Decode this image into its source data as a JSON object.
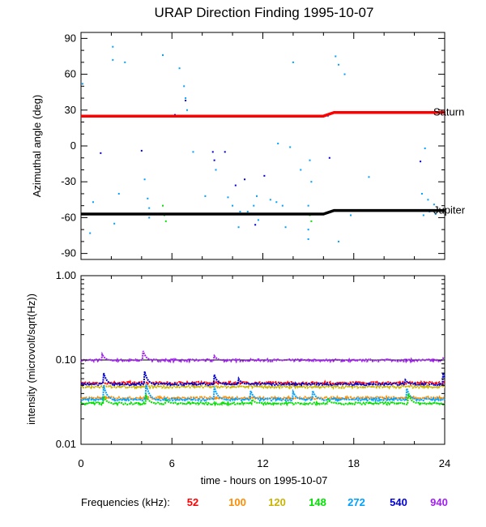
{
  "title": "URAP Direction Finding  1995-10-07",
  "xlabel": "time - hours on 1995-10-07",
  "legend": {
    "label": "Frequencies (kHz):",
    "items": [
      {
        "name": "52",
        "color": "#ff0000"
      },
      {
        "name": "100",
        "color": "#ff8c00"
      },
      {
        "name": "120",
        "color": "#c8b400"
      },
      {
        "name": "148",
        "color": "#00e000"
      },
      {
        "name": "272",
        "color": "#00a0ff"
      },
      {
        "name": "540",
        "color": "#0000d0"
      },
      {
        "name": "940",
        "color": "#a020f0"
      }
    ]
  },
  "chart_data": [
    {
      "type": "scatter",
      "ylabel": "Azimuthal angle (deg)",
      "xlim": [
        0,
        24
      ],
      "ylim": [
        -95,
        95
      ],
      "xticks": [
        0,
        6,
        12,
        18,
        24
      ],
      "yticks": [
        90,
        60,
        30,
        0,
        -30,
        -60,
        -90
      ],
      "series": [
        {
          "name": "Saturn",
          "color": "#ff0000",
          "x": [
            0,
            16.0,
            16.7,
            24
          ],
          "y": [
            25,
            25,
            28,
            28
          ]
        },
        {
          "name": "Jupiter",
          "color": "#000000",
          "x": [
            0,
            16.0,
            16.7,
            24
          ],
          "y": [
            -57,
            -57,
            -54,
            -54
          ]
        }
      ],
      "scatter_points": [
        {
          "x": 0.1,
          "y": 52,
          "c": "#00a0ff"
        },
        {
          "x": 0.6,
          "y": -73,
          "c": "#00a0ff"
        },
        {
          "x": 0.8,
          "y": -47,
          "c": "#00a0ff"
        },
        {
          "x": 1.3,
          "y": -6,
          "c": "#0000d0"
        },
        {
          "x": 2.1,
          "y": 83,
          "c": "#00a0ff"
        },
        {
          "x": 2.1,
          "y": 72,
          "c": "#00a0ff"
        },
        {
          "x": 2.2,
          "y": -65,
          "c": "#00a0ff"
        },
        {
          "x": 2.5,
          "y": -40,
          "c": "#00a0ff"
        },
        {
          "x": 2.9,
          "y": 70,
          "c": "#00a0ff"
        },
        {
          "x": 4.0,
          "y": -4,
          "c": "#0000d0"
        },
        {
          "x": 4.2,
          "y": -28,
          "c": "#00a0ff"
        },
        {
          "x": 4.4,
          "y": -44,
          "c": "#00a0ff"
        },
        {
          "x": 4.5,
          "y": -52,
          "c": "#00a0ff"
        },
        {
          "x": 4.5,
          "y": -60,
          "c": "#00a0ff"
        },
        {
          "x": 5.4,
          "y": -50,
          "c": "#00e000"
        },
        {
          "x": 5.5,
          "y": -58,
          "c": "#00e000"
        },
        {
          "x": 5.6,
          "y": -63,
          "c": "#00e000"
        },
        {
          "x": 5.4,
          "y": 76,
          "c": "#00a0ff"
        },
        {
          "x": 6.2,
          "y": 26,
          "c": "#0000d0"
        },
        {
          "x": 6.5,
          "y": 65,
          "c": "#00a0ff"
        },
        {
          "x": 6.8,
          "y": 50,
          "c": "#00a0ff"
        },
        {
          "x": 6.9,
          "y": 40,
          "c": "#00a0ff"
        },
        {
          "x": 6.9,
          "y": 38,
          "c": "#0000d0"
        },
        {
          "x": 7.0,
          "y": 30,
          "c": "#00a0ff"
        },
        {
          "x": 7.4,
          "y": -5,
          "c": "#00a0ff"
        },
        {
          "x": 8.2,
          "y": -42,
          "c": "#00a0ff"
        },
        {
          "x": 8.7,
          "y": -5,
          "c": "#0000d0"
        },
        {
          "x": 8.8,
          "y": -12,
          "c": "#0000d0"
        },
        {
          "x": 8.9,
          "y": -20,
          "c": "#00a0ff"
        },
        {
          "x": 9.5,
          "y": -5,
          "c": "#0000d0"
        },
        {
          "x": 9.7,
          "y": -43,
          "c": "#00a0ff"
        },
        {
          "x": 10.2,
          "y": -33,
          "c": "#0000d0"
        },
        {
          "x": 10.4,
          "y": -68,
          "c": "#00a0ff"
        },
        {
          "x": 10.5,
          "y": -55,
          "c": "#00a0ff"
        },
        {
          "x": 10.8,
          "y": -28,
          "c": "#0000d0"
        },
        {
          "x": 11.0,
          "y": -55,
          "c": "#00a0ff"
        },
        {
          "x": 11.4,
          "y": -50,
          "c": "#00a0ff"
        },
        {
          "x": 11.6,
          "y": -42,
          "c": "#00a0ff"
        },
        {
          "x": 11.7,
          "y": -62,
          "c": "#00a0ff"
        },
        {
          "x": 12.1,
          "y": -25,
          "c": "#0000d0"
        },
        {
          "x": 12.5,
          "y": -45,
          "c": "#00a0ff"
        },
        {
          "x": 12.9,
          "y": -47,
          "c": "#00a0ff"
        },
        {
          "x": 13.0,
          "y": 2,
          "c": "#00a0ff"
        },
        {
          "x": 13.3,
          "y": -50,
          "c": "#00a0ff"
        },
        {
          "x": 13.4,
          "y": -57,
          "c": "#00a0ff"
        },
        {
          "x": 13.5,
          "y": -68,
          "c": "#00a0ff"
        },
        {
          "x": 13.8,
          "y": -1,
          "c": "#00a0ff"
        },
        {
          "x": 14.0,
          "y": 70,
          "c": "#00a0ff"
        },
        {
          "x": 14.5,
          "y": -20,
          "c": "#00a0ff"
        },
        {
          "x": 15.0,
          "y": -50,
          "c": "#00a0ff"
        },
        {
          "x": 15.1,
          "y": -58,
          "c": "#00e000"
        },
        {
          "x": 15.2,
          "y": -63,
          "c": "#00e000"
        },
        {
          "x": 15.0,
          "y": -70,
          "c": "#00a0ff"
        },
        {
          "x": 15.0,
          "y": -78,
          "c": "#00a0ff"
        },
        {
          "x": 15.1,
          "y": -12,
          "c": "#00a0ff"
        },
        {
          "x": 15.2,
          "y": -30,
          "c": "#00a0ff"
        },
        {
          "x": 16.3,
          "y": 25,
          "c": "#00a0ff"
        },
        {
          "x": 16.4,
          "y": -10,
          "c": "#0000d0"
        },
        {
          "x": 16.8,
          "y": 75,
          "c": "#00a0ff"
        },
        {
          "x": 17.0,
          "y": 68,
          "c": "#00a0ff"
        },
        {
          "x": 17.0,
          "y": -80,
          "c": "#00a0ff"
        },
        {
          "x": 17.4,
          "y": 60,
          "c": "#00a0ff"
        },
        {
          "x": 17.8,
          "y": -58,
          "c": "#00a0ff"
        },
        {
          "x": 19.0,
          "y": -26,
          "c": "#00a0ff"
        },
        {
          "x": 22.4,
          "y": -13,
          "c": "#0000d0"
        },
        {
          "x": 22.5,
          "y": -40,
          "c": "#00a0ff"
        },
        {
          "x": 22.6,
          "y": -58,
          "c": "#00a0ff"
        },
        {
          "x": 22.7,
          "y": -2,
          "c": "#00a0ff"
        },
        {
          "x": 22.9,
          "y": -45,
          "c": "#00a0ff"
        },
        {
          "x": 23.0,
          "y": -55,
          "c": "#00a0ff"
        },
        {
          "x": 23.3,
          "y": -49,
          "c": "#00a0ff"
        },
        {
          "x": 23.4,
          "y": -57,
          "c": "#00a0ff"
        },
        {
          "x": 11.5,
          "y": -66,
          "c": "#0000d0"
        },
        {
          "x": 10.0,
          "y": -50,
          "c": "#00a0ff"
        }
      ],
      "line_labels": [
        {
          "name": "Saturn",
          "y": 28
        },
        {
          "name": "Jupiter",
          "y": -54
        }
      ]
    },
    {
      "type": "line",
      "ylabel": "intensity (microvolt/sqrt(Hz))",
      "yscale": "log",
      "xlim": [
        0,
        24
      ],
      "ylim": [
        0.01,
        1.0
      ],
      "xticks": [
        0,
        6,
        12,
        18,
        24
      ],
      "yticks": [
        1.0,
        0.1,
        0.01
      ],
      "ytick_labels": [
        "1.00",
        "0.10",
        "0.01"
      ],
      "series": [
        {
          "name": "940",
          "color": "#a020f0",
          "level": 0.099,
          "spikes": [
            [
              1.4,
              0.117
            ],
            [
              4.1,
              0.128
            ],
            [
              8.8,
              0.112
            ],
            [
              23.9,
              0.105
            ]
          ]
        },
        {
          "name": "52",
          "color": "#ff0000",
          "level": 0.0535,
          "spikes": []
        },
        {
          "name": "540",
          "color": "#0000d0",
          "level": 0.0515,
          "spikes": [
            [
              1.5,
              0.07
            ],
            [
              4.2,
              0.073
            ],
            [
              8.8,
              0.067
            ],
            [
              10.4,
              0.06
            ],
            [
              21.4,
              0.058
            ],
            [
              23.9,
              0.07
            ]
          ]
        },
        {
          "name": "120",
          "color": "#c8b400",
          "level": 0.048,
          "spikes": []
        },
        {
          "name": "100",
          "color": "#ff8c00",
          "level": 0.0355,
          "spikes": []
        },
        {
          "name": "272",
          "color": "#00a0ff",
          "level": 0.034,
          "spikes": [
            [
              1.5,
              0.05
            ],
            [
              4.3,
              0.052
            ],
            [
              8.8,
              0.048
            ],
            [
              11.2,
              0.043
            ],
            [
              14.0,
              0.042
            ],
            [
              15.3,
              0.043
            ],
            [
              21.5,
              0.046
            ]
          ]
        },
        {
          "name": "148",
          "color": "#00e000",
          "level": 0.0305,
          "spikes": [
            [
              1.5,
              0.037
            ],
            [
              4.3,
              0.038
            ],
            [
              5.6,
              0.034
            ],
            [
              11.3,
              0.034
            ],
            [
              16.3,
              0.034
            ],
            [
              21.6,
              0.04
            ]
          ]
        }
      ],
      "reference_line": 0.1
    }
  ]
}
